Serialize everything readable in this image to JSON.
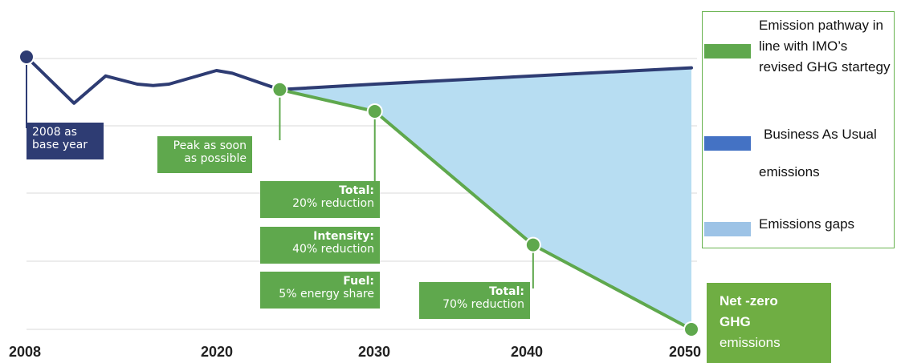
{
  "chart_data": {
    "type": "line",
    "x_ticks": [
      "2008",
      "2020",
      "2030",
      "2040",
      "2050"
    ],
    "series": [
      {
        "name": "Business As Usual emissions",
        "color": "#2e3c73",
        "points": [
          [
            2008,
            100
          ],
          [
            2011,
            83
          ],
          [
            2013,
            93
          ],
          [
            2015,
            90
          ],
          [
            2016,
            89.5
          ],
          [
            2017,
            90
          ],
          [
            2020,
            95
          ],
          [
            2021,
            94
          ],
          [
            2024,
            88
          ],
          [
            2030,
            90
          ],
          [
            2040,
            93
          ],
          [
            2050,
            96
          ]
        ]
      },
      {
        "name": "Emission pathway in line with IMO’s revised GHG startegy",
        "color": "#5fa84d",
        "points": [
          [
            2024,
            88
          ],
          [
            2030,
            80
          ],
          [
            2040,
            31
          ],
          [
            2050,
            0
          ]
        ]
      }
    ],
    "area": {
      "name": "Emissions gaps",
      "color": "#b7ddf2"
    },
    "markers": [
      {
        "x": 2008,
        "y": 100,
        "color": "#2e3c73"
      },
      {
        "x": 2024,
        "y": 88,
        "color": "#5fa84d"
      },
      {
        "x": 2030,
        "y": 80,
        "color": "#5fa84d"
      },
      {
        "x": 2040,
        "y": 31,
        "color": "#5fa84d"
      },
      {
        "x": 2050,
        "y": 0,
        "color": "#5fa84d"
      }
    ],
    "ylim": [
      0,
      100
    ],
    "grid": true
  },
  "callouts": {
    "base_year": {
      "line1": "2008 as",
      "line2": "base year"
    },
    "peak": {
      "line1": "Peak as soon",
      "line2": "as possible"
    },
    "total_2030": {
      "head": "Total:",
      "body": "20% reduction"
    },
    "intensity_2030": {
      "head": "Intensity:",
      "body": "40% reduction"
    },
    "fuel_2030": {
      "head": "Fuel:",
      "body": "5% energy share"
    },
    "total_2040": {
      "head": "Total:",
      "body": "70% reduction"
    }
  },
  "legend": {
    "pathway": {
      "label": "Emission pathway in line with IMO’s revised GHG startegy",
      "color": "#5fa84d"
    },
    "bau": {
      "label_line1": "Business As Usual",
      "label_line2": "emissions",
      "color": "#4472c4"
    },
    "gap": {
      "label": "Emissions gaps",
      "color": "#9dc3e6"
    }
  },
  "net_zero": {
    "line1": "Net -zero",
    "line2": "GHG",
    "line3": "emissions"
  },
  "colors": {
    "bau": "#2e3c73",
    "pathway": "#5fa84d",
    "gap": "#b7ddf2",
    "grid": "#d9d9d9"
  }
}
